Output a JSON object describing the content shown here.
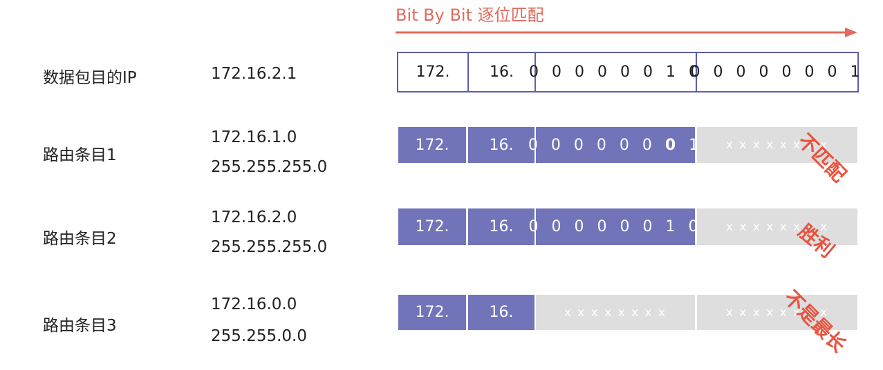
{
  "header": {
    "title": "Bit By Bit 逐位匹配",
    "arrow_color": "#e06b5e"
  },
  "colors": {
    "matched": "#7174b9",
    "unmatched": "#dedede",
    "outline": "#5c5fa8",
    "stamp": "#e8533f"
  },
  "rows": [
    {
      "label": "数据包目的IP",
      "address": "172.16.2.1",
      "mask": "",
      "cells": [
        "172.",
        "16.",
        "0 0 0 0 0 0 1 0",
        "0 0 0 0 0 0 0 1"
      ],
      "stamp": ""
    },
    {
      "label": "路由条目1",
      "address": "172.16.1.0",
      "mask": "255.255.255.0",
      "cells": [
        "172.",
        "16.",
        "0 0 0 0 0 0 ",
        "0",
        " 1",
        "x x x x x x x x"
      ],
      "stamp": "不匹配"
    },
    {
      "label": "路由条目2",
      "address": "172.16.2.0",
      "mask": "255.255.255.0",
      "cells": [
        "172.",
        "16.",
        "0 0 0 0 0 0 1 0",
        "x x x x x x x x"
      ],
      "stamp": "胜利"
    },
    {
      "label": "路由条目3",
      "address": "172.16.0.0",
      "mask": "255.255.0.0",
      "cells": [
        "172.",
        "16.",
        "x x x x x x x x",
        "x x x x x x x x"
      ],
      "stamp": "不是最长"
    }
  ]
}
